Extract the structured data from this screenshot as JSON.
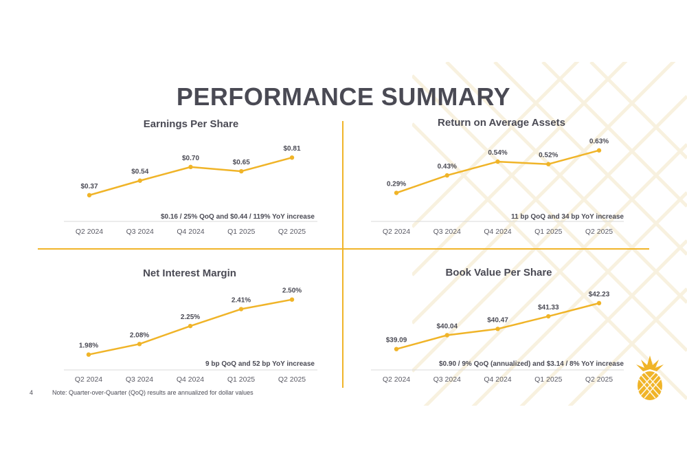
{
  "page": {
    "title": "PERFORMANCE SUMMARY",
    "page_number": "4",
    "footnote": "Note: Quarter-over-Quarter (QoQ) results are annualized for dollar values",
    "accent_color": "#f0b428",
    "text_color": "#4a4a54",
    "logo_icon": "pineapple-icon"
  },
  "chart_data": [
    {
      "type": "line",
      "title": "Earnings Per Share",
      "categories": [
        "Q2 2024",
        "Q3 2024",
        "Q4 2024",
        "Q1 2025",
        "Q2 2025"
      ],
      "values": [
        0.37,
        0.54,
        0.7,
        0.65,
        0.81
      ],
      "data_labels": [
        "$0.37",
        "$0.54",
        "$0.70",
        "$0.65",
        "$0.81"
      ],
      "annotation": "$0.16 / 25% QoQ and $0.44 / 119% YoY increase",
      "ylim": [
        0.2,
        0.9
      ],
      "grid": false,
      "color": "#f0b428"
    },
    {
      "type": "line",
      "title": "Return on Average Assets",
      "categories": [
        "Q2 2024",
        "Q3 2024",
        "Q4 2024",
        "Q1 2025",
        "Q2 2025"
      ],
      "values": [
        0.29,
        0.43,
        0.54,
        0.52,
        0.63
      ],
      "data_labels": [
        "0.29%",
        "0.43%",
        "0.54%",
        "0.52%",
        "0.63%"
      ],
      "annotation": "11 bp QoQ and 34 bp YoY increase",
      "ylim": [
        0.15,
        0.7
      ],
      "grid": false,
      "color": "#f0b428"
    },
    {
      "type": "line",
      "title": "Net Interest Margin",
      "categories": [
        "Q2 2024",
        "Q3 2024",
        "Q4 2024",
        "Q1 2025",
        "Q2 2025"
      ],
      "values": [
        1.98,
        2.08,
        2.25,
        2.41,
        2.5
      ],
      "data_labels": [
        "1.98%",
        "2.08%",
        "2.25%",
        "2.41%",
        "2.50%"
      ],
      "annotation": "9 bp QoQ and 52 bp YoY increase",
      "ylim": [
        1.9,
        2.55
      ],
      "grid": false,
      "color": "#f0b428"
    },
    {
      "type": "line",
      "title": "Book Value Per Share",
      "categories": [
        "Q2 2024",
        "Q3 2024",
        "Q4 2024",
        "Q1 2025",
        "Q2 2025"
      ],
      "values": [
        39.09,
        40.04,
        40.47,
        41.33,
        42.23
      ],
      "data_labels": [
        "$39.09",
        "$40.04",
        "$40.47",
        "$41.33",
        "$42.23"
      ],
      "annotation": "$0.90 / 9% QoQ (annualized) and $3.14 / 8% YoY increase",
      "ylim": [
        38.7,
        42.6
      ],
      "grid": false,
      "color": "#f0b428"
    }
  ]
}
